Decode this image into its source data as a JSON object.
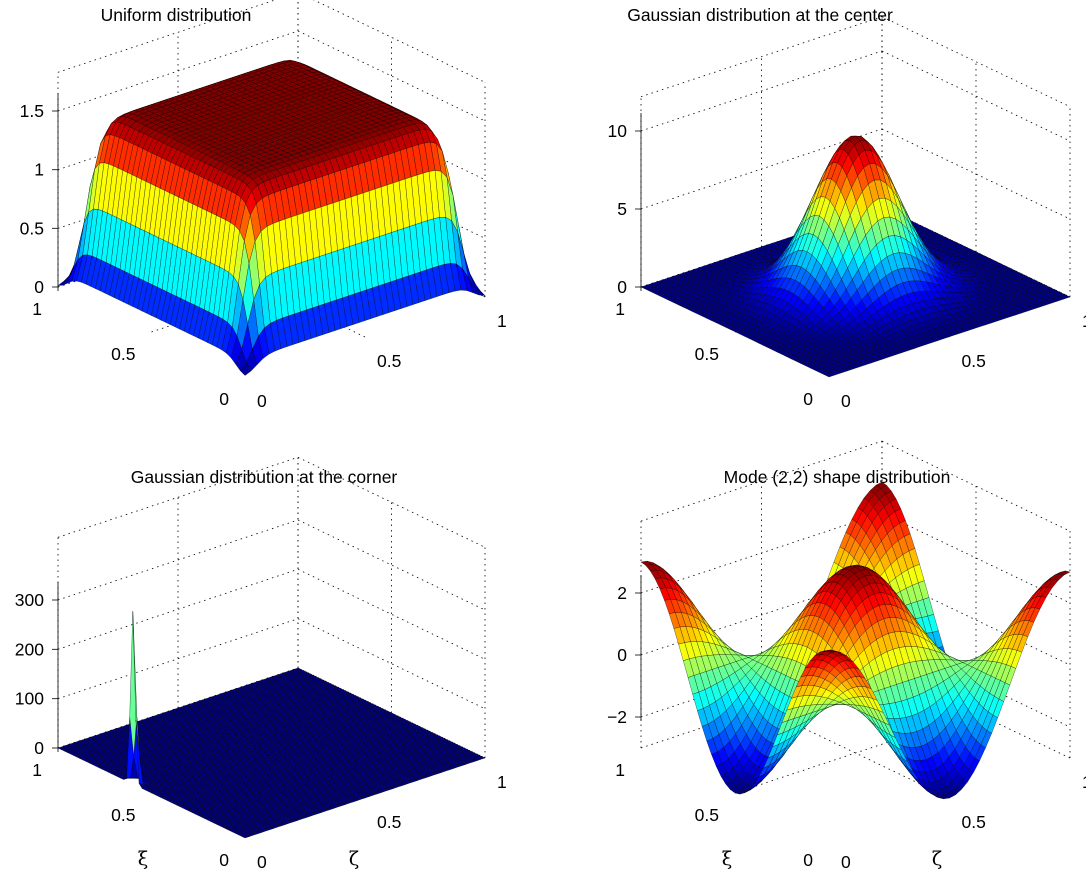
{
  "chart_data": [
    {
      "type": "surface",
      "title": "Uniform distribution",
      "xlabel": "",
      "ylabel": "",
      "xlim": [
        0,
        1
      ],
      "ylim": [
        0,
        1
      ],
      "zlim": [
        0,
        1.5
      ],
      "xticks": [
        "0",
        "0.5",
        "1"
      ],
      "yticks": [
        "0",
        "0.5",
        "1"
      ],
      "zticks": [
        "0",
        "0.5",
        "1",
        "1.5"
      ],
      "grid": true,
      "colormap": "jet",
      "surface": {
        "kind": "uniform",
        "height": 1.5,
        "edge_width": 0.05
      }
    },
    {
      "type": "surface",
      "title": "Gaussian distribution at the center",
      "xlabel": "",
      "ylabel": "",
      "xlim": [
        0,
        1
      ],
      "ylim": [
        0,
        1
      ],
      "zlim": [
        0,
        10
      ],
      "xticks": [
        "0",
        "0.5",
        "1"
      ],
      "yticks": [
        "0",
        "0.5",
        "1"
      ],
      "zticks": [
        "0",
        "5",
        "10"
      ],
      "grid": true,
      "colormap": "jet",
      "surface": {
        "kind": "gaussian",
        "center": [
          0.5,
          0.5
        ],
        "peak": 10,
        "sigma": 0.14
      }
    },
    {
      "type": "surface",
      "title": "Gaussian distribution at the corner",
      "xlabel": "ζ",
      "ylabel": "ξ",
      "xlim": [
        0,
        1
      ],
      "ylim": [
        0,
        1
      ],
      "zlim": [
        0,
        350
      ],
      "xticks": [
        "0",
        "0.5",
        "1"
      ],
      "yticks": [
        "0",
        "0.5",
        "1"
      ],
      "zticks": [
        "0",
        "100",
        "200",
        "300"
      ],
      "grid": true,
      "colormap": "jet",
      "surface": {
        "kind": "gaussian",
        "center": [
          0,
          0.6
        ],
        "peak": 350,
        "sigma": 0.012
      }
    },
    {
      "type": "surface",
      "title": "Mode (2,2) shape distribution",
      "xlabel": "ζ",
      "ylabel": "ξ",
      "xlim": [
        0,
        1
      ],
      "ylim": [
        0,
        1
      ],
      "zlim": [
        -3,
        3
      ],
      "xticks": [
        "0",
        "0.5",
        "1"
      ],
      "yticks": [
        "0",
        "0.5",
        "1"
      ],
      "zticks": [
        "−2",
        "0",
        "2"
      ],
      "grid": true,
      "colormap": "jet",
      "surface": {
        "kind": "mode",
        "m": 2,
        "n": 2,
        "amplitude": 3
      }
    }
  ]
}
